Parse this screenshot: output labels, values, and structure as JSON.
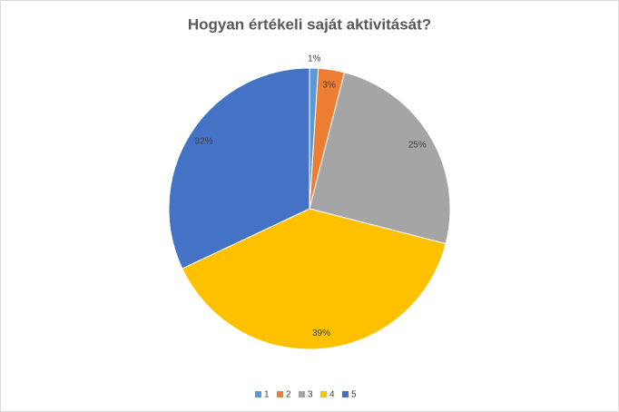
{
  "chart_data": {
    "type": "pie",
    "title": "Hogyan értékeli saját aktivitását?",
    "categories": [
      "1",
      "2",
      "3",
      "4",
      "5"
    ],
    "values": [
      1,
      3,
      25,
      39,
      32
    ],
    "value_labels": [
      "1%",
      "3%",
      "25%",
      "39%",
      "32%"
    ],
    "colors": [
      "#5b9bd5",
      "#ed7d31",
      "#a5a5a5",
      "#ffc000",
      "#4472c4"
    ],
    "legend": "bottom"
  }
}
